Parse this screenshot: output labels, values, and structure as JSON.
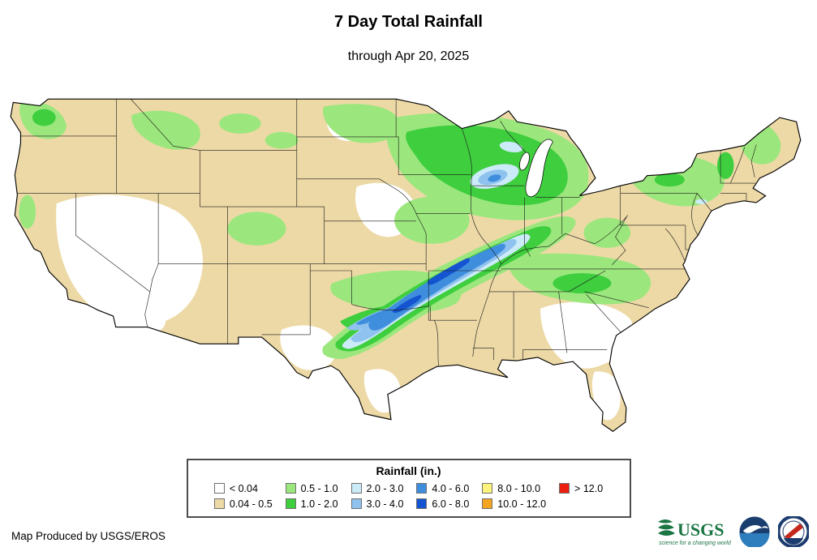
{
  "title": "7 Day Total Rainfall",
  "subtitle": "through Apr 20, 2025",
  "legend": {
    "title": "Rainfall (in.)",
    "bins": [
      {
        "label": "< 0.04",
        "color": "#FFFFFF"
      },
      {
        "label": "0.04 - 0.5",
        "color": "#EDD9A6"
      },
      {
        "label": "0.5 - 1.0",
        "color": "#9BE77D"
      },
      {
        "label": "1.0 - 2.0",
        "color": "#3ECE3E"
      },
      {
        "label": "2.0 - 3.0",
        "color": "#CBEBF8"
      },
      {
        "label": "3.0 - 4.0",
        "color": "#8FC2EE"
      },
      {
        "label": "4.0 - 6.0",
        "color": "#3F8EDE"
      },
      {
        "label": "6.0 - 8.0",
        "color": "#1454D0"
      },
      {
        "label": "8.0 - 10.0",
        "color": "#FBF37C"
      },
      {
        "label": "10.0 - 12.0",
        "color": "#F4A41F"
      },
      {
        "label": "> 12.0",
        "color": "#EC1E0F"
      }
    ]
  },
  "credit": "Map Produced by USGS/EROS",
  "logos": {
    "usgs": {
      "label": "USGS",
      "tagline": "science for a changing world",
      "color": "#1B7543"
    },
    "noaa": {
      "label": "NOAA",
      "color": "#1A3E6E",
      "accent": "#2E7DBC"
    },
    "nws": {
      "label": "NWS",
      "color": "#1C3B6E",
      "accent": "#C4281C"
    }
  }
}
